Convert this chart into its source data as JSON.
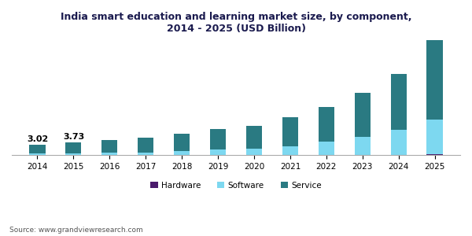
{
  "title": "India smart education and learning market size, by component,\n2014 - 2025 (USD Billion)",
  "years": [
    2014,
    2015,
    2016,
    2017,
    2018,
    2019,
    2020,
    2021,
    2022,
    2023,
    2024,
    2025
  ],
  "hardware": [
    0.05,
    0.06,
    0.07,
    0.08,
    0.09,
    0.1,
    0.11,
    0.13,
    0.15,
    0.18,
    0.2,
    0.25
  ],
  "software": [
    0.45,
    0.55,
    0.68,
    0.8,
    1.1,
    1.5,
    1.8,
    2.5,
    3.8,
    5.0,
    7.0,
    9.8
  ],
  "service": [
    2.52,
    3.12,
    3.55,
    4.12,
    4.81,
    5.9,
    6.49,
    8.07,
    9.75,
    12.32,
    15.8,
    22.45
  ],
  "annotations": {
    "2014": "3.02",
    "2015": "3.73"
  },
  "color_hardware": "#4a1a6b",
  "color_software": "#7dd8f0",
  "color_service": "#2a7a82",
  "color_background": "#ffffff",
  "bar_width": 0.45,
  "ylim": [
    0,
    33
  ],
  "source_text": "Source: www.grandviewresearch.com",
  "legend_labels": [
    "Hardware",
    "Software",
    "Service"
  ],
  "title_fontsize": 9,
  "title_color": "#1a1a4e",
  "label_fontsize": 7.5,
  "tick_fontsize": 7.5,
  "source_fontsize": 6.5,
  "annot_fontsize": 8
}
